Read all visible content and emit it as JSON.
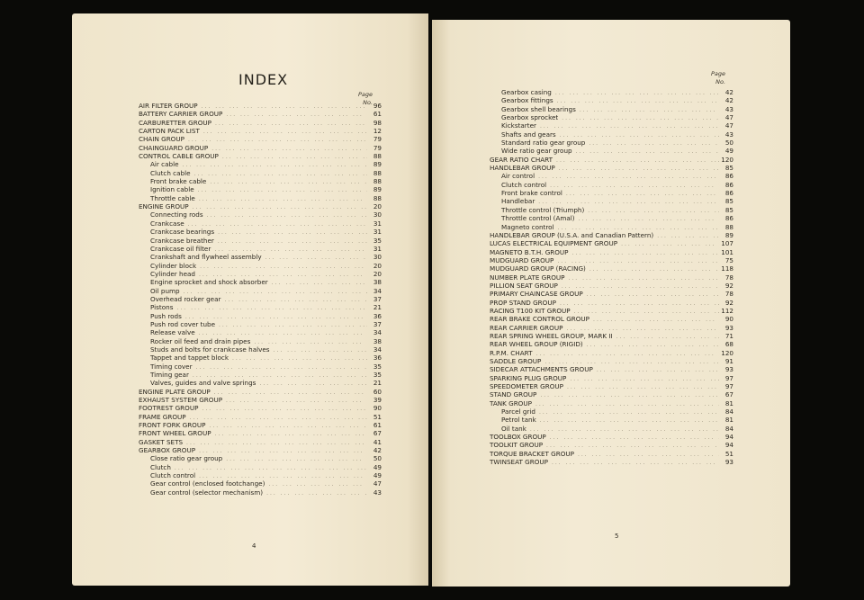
{
  "left_page": {
    "title": "INDEX",
    "column_header": [
      "Page",
      "No."
    ],
    "folio": "4",
    "entries": [
      {
        "label": "AIR FILTER GROUP",
        "page": "96",
        "level": 0
      },
      {
        "label": "BATTERY CARRIER GROUP",
        "page": "61",
        "level": 0
      },
      {
        "label": "CARBURETTER GROUP",
        "page": "98",
        "level": 0
      },
      {
        "label": "CARTON PACK LIST",
        "page": "12",
        "level": 0
      },
      {
        "label": "CHAIN GROUP",
        "page": "79",
        "level": 0
      },
      {
        "label": "CHAINGUARD GROUP",
        "page": "79",
        "level": 0
      },
      {
        "label": "CONTROL CABLE GROUP",
        "page": "88",
        "level": 0
      },
      {
        "label": "Air cable",
        "page": "89",
        "level": 1
      },
      {
        "label": "Clutch cable",
        "page": "88",
        "level": 1
      },
      {
        "label": "Front brake cable",
        "page": "88",
        "level": 1
      },
      {
        "label": "Ignition cable",
        "page": "89",
        "level": 1
      },
      {
        "label": "Throttle cable",
        "page": "88",
        "level": 1
      },
      {
        "label": "ENGINE GROUP",
        "page": "20",
        "level": 0
      },
      {
        "label": "Connecting rods",
        "page": "30",
        "level": 1
      },
      {
        "label": "Crankcase",
        "page": "31",
        "level": 1
      },
      {
        "label": "Crankcase bearings",
        "page": "31",
        "level": 1
      },
      {
        "label": "Crankcase breather",
        "page": "35",
        "level": 1
      },
      {
        "label": "Crankcase oil filter",
        "page": "31",
        "level": 1
      },
      {
        "label": "Crankshaft and flywheel assembly",
        "page": "30",
        "level": 1
      },
      {
        "label": "Cylinder block",
        "page": "20",
        "level": 1
      },
      {
        "label": "Cylinder head",
        "page": "20",
        "level": 1
      },
      {
        "label": "Engine sprocket and shock absorber",
        "page": "38",
        "level": 1
      },
      {
        "label": "Oil pump",
        "page": "34",
        "level": 1
      },
      {
        "label": "Overhead rocker gear",
        "page": "37",
        "level": 1
      },
      {
        "label": "Pistons",
        "page": "21",
        "level": 1
      },
      {
        "label": "Push rods",
        "page": "36",
        "level": 1
      },
      {
        "label": "Push rod cover tube",
        "page": "37",
        "level": 1
      },
      {
        "label": "Release valve",
        "page": "34",
        "level": 1
      },
      {
        "label": "Rocker oil feed and drain pipes",
        "page": "38",
        "level": 1
      },
      {
        "label": "Studs and bolts for crankcase halves",
        "page": "34",
        "level": 1
      },
      {
        "label": "Tappet and tappet block",
        "page": "36",
        "level": 1
      },
      {
        "label": "Timing cover",
        "page": "35",
        "level": 1
      },
      {
        "label": "Timing gear",
        "page": "35",
        "level": 1
      },
      {
        "label": "Valves, guides and valve springs",
        "page": "21",
        "level": 1
      },
      {
        "label": "ENGINE PLATE GROUP",
        "page": "60",
        "level": 0
      },
      {
        "label": "EXHAUST SYSTEM GROUP",
        "page": "39",
        "level": 0
      },
      {
        "label": "FOOTREST GROUP",
        "page": "90",
        "level": 0
      },
      {
        "label": "FRAME GROUP",
        "page": "51",
        "level": 0
      },
      {
        "label": "FRONT FORK GROUP",
        "page": "61",
        "level": 0
      },
      {
        "label": "FRONT WHEEL GROUP",
        "page": "67",
        "level": 0
      },
      {
        "label": "GASKET SETS",
        "page": "41",
        "level": 0
      },
      {
        "label": "GEARBOX GROUP",
        "page": "42",
        "level": 0
      },
      {
        "label": "Close ratio gear group",
        "page": "50",
        "level": 1
      },
      {
        "label": "Clutch",
        "page": "49",
        "level": 1
      },
      {
        "label": "Clutch control",
        "page": "49",
        "level": 1
      },
      {
        "label": "Gear control (enclosed footchange)",
        "page": "47",
        "level": 1
      },
      {
        "label": "Gear control (selector mechanism)",
        "page": "43",
        "level": 1
      }
    ]
  },
  "right_page": {
    "column_header": [
      "Page",
      "No."
    ],
    "folio": "5",
    "entries": [
      {
        "label": "Gearbox casing",
        "page": "42",
        "level": 1
      },
      {
        "label": "Gearbox fittings",
        "page": "42",
        "level": 1
      },
      {
        "label": "Gearbox shell bearings",
        "page": "43",
        "level": 1
      },
      {
        "label": "Gearbox sprocket",
        "page": "47",
        "level": 1
      },
      {
        "label": "Kickstarter",
        "page": "47",
        "level": 1
      },
      {
        "label": "Shafts and gears",
        "page": "43",
        "level": 1
      },
      {
        "label": "Standard ratio gear group",
        "page": "50",
        "level": 1
      },
      {
        "label": "Wide ratio gear group",
        "page": "49",
        "level": 1
      },
      {
        "label": "GEAR RATIO CHART",
        "page": "120",
        "level": 0
      },
      {
        "label": "HANDLEBAR GROUP",
        "page": "85",
        "level": 0
      },
      {
        "label": "Air control",
        "page": "86",
        "level": 1
      },
      {
        "label": "Clutch control",
        "page": "86",
        "level": 1
      },
      {
        "label": "Front brake control",
        "page": "86",
        "level": 1
      },
      {
        "label": "Handlebar",
        "page": "85",
        "level": 1
      },
      {
        "label": "Throttle control (Triumph)",
        "page": "85",
        "level": 1
      },
      {
        "label": "Throttle control (Amal)",
        "page": "86",
        "level": 1
      },
      {
        "label": "Magneto control",
        "page": "88",
        "level": 1
      },
      {
        "label": "HANDLEBAR GROUP (U.S.A. and Canadian Pattern)",
        "page": "89",
        "level": 0
      },
      {
        "label": "LUCAS ELECTRICAL EQUIPMENT GROUP",
        "page": "107",
        "level": 0
      },
      {
        "label": "MAGNETO B.T.H. GROUP",
        "page": "101",
        "level": 0
      },
      {
        "label": "MUDGUARD GROUP",
        "page": "75",
        "level": 0
      },
      {
        "label": "MUDGUARD GROUP (RACING)",
        "page": "118",
        "level": 0
      },
      {
        "label": "NUMBER PLATE GROUP",
        "page": "78",
        "level": 0
      },
      {
        "label": "PILLION SEAT GROUP",
        "page": "92",
        "level": 0
      },
      {
        "label": "PRIMARY CHAINCASE GROUP",
        "page": "78",
        "level": 0
      },
      {
        "label": "PROP STAND GROUP",
        "page": "92",
        "level": 0
      },
      {
        "label": "RACING T100 KIT GROUP",
        "page": "112",
        "level": 0
      },
      {
        "label": "REAR BRAKE CONTROL GROUP",
        "page": "90",
        "level": 0
      },
      {
        "label": "REAR CARRIER GROUP",
        "page": "93",
        "level": 0
      },
      {
        "label": "REAR SPRING WHEEL GROUP, MARK II",
        "page": "71",
        "level": 0
      },
      {
        "label": "REAR WHEEL GROUP (RIGID)",
        "page": "68",
        "level": 0
      },
      {
        "label": "R.P.M. CHART",
        "page": "120",
        "level": 0
      },
      {
        "label": "SADDLE GROUP",
        "page": "91",
        "level": 0
      },
      {
        "label": "SIDECAR ATTACHMENTS GROUP",
        "page": "93",
        "level": 0
      },
      {
        "label": "SPARKING PLUG GROUP",
        "page": "97",
        "level": 0
      },
      {
        "label": "SPEEDOMETER GROUP",
        "page": "97",
        "level": 0
      },
      {
        "label": "STAND GROUP",
        "page": "67",
        "level": 0
      },
      {
        "label": "TANK GROUP",
        "page": "81",
        "level": 0
      },
      {
        "label": "Parcel grid",
        "page": "84",
        "level": 1
      },
      {
        "label": "Petrol tank",
        "page": "81",
        "level": 1
      },
      {
        "label": "Oil tank",
        "page": "84",
        "level": 1
      },
      {
        "label": "TOOLBOX GROUP",
        "page": "94",
        "level": 0
      },
      {
        "label": "TOOLKIT GROUP",
        "page": "94",
        "level": 0
      },
      {
        "label": "TORQUE BRACKET GROUP",
        "page": "51",
        "level": 0
      },
      {
        "label": "TWINSEAT GROUP",
        "page": "93",
        "level": 0
      }
    ]
  }
}
